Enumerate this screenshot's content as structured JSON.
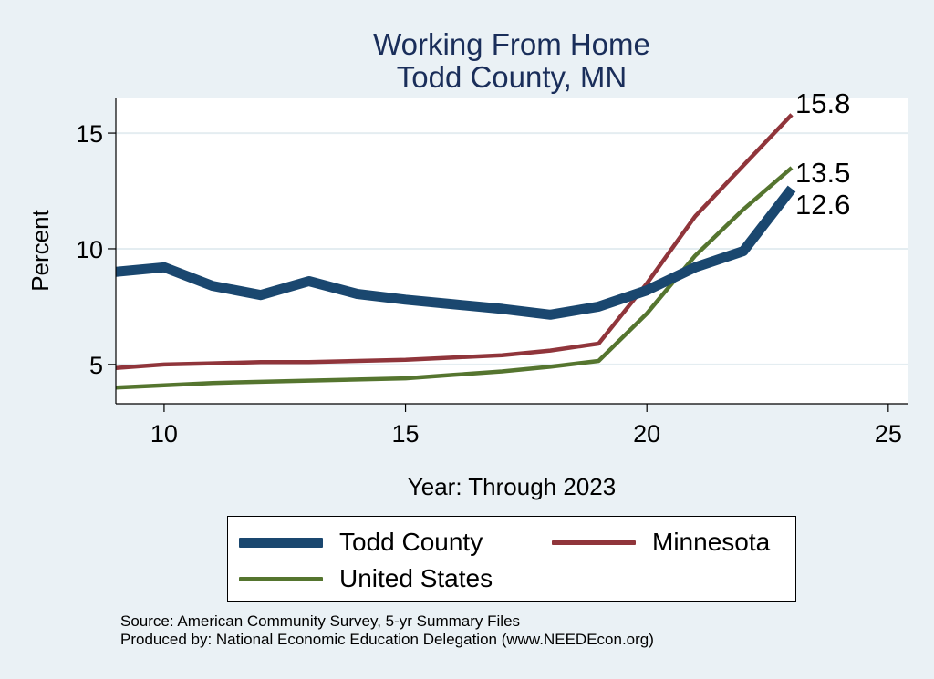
{
  "chart_data": {
    "type": "line",
    "title": "Working From Home",
    "subtitle": "Todd County, MN",
    "xlabel": "Year: Through 2023",
    "ylabel": "Percent",
    "xlim": [
      9,
      25.4
    ],
    "ylim": [
      3.3,
      16.5
    ],
    "x_ticks": [
      10,
      15,
      20,
      25
    ],
    "y_ticks": [
      5,
      10,
      15
    ],
    "grid": true,
    "legend_position": "bottom",
    "series": [
      {
        "name": "Todd County",
        "color": "#1a476f",
        "x": [
          9,
          10,
          11,
          12,
          13,
          14,
          15,
          16,
          17,
          18,
          19,
          20,
          21,
          22,
          23
        ],
        "values": [
          9.0,
          9.2,
          8.4,
          8.0,
          8.6,
          8.05,
          7.8,
          7.6,
          7.4,
          7.15,
          7.5,
          8.2,
          9.2,
          9.9,
          12.6
        ],
        "end_label": "12.6"
      },
      {
        "name": "Minnesota",
        "color": "#90353b",
        "x": [
          9,
          10,
          11,
          12,
          13,
          14,
          15,
          16,
          17,
          18,
          19,
          20,
          21,
          22,
          23
        ],
        "values": [
          4.85,
          5.0,
          5.05,
          5.1,
          5.1,
          5.15,
          5.2,
          5.3,
          5.4,
          5.6,
          5.9,
          8.5,
          11.4,
          13.6,
          15.8
        ],
        "end_label": "15.8"
      },
      {
        "name": "United States",
        "color": "#55752f",
        "x": [
          9,
          10,
          11,
          12,
          13,
          14,
          15,
          16,
          17,
          18,
          19,
          20,
          21,
          22,
          23
        ],
        "values": [
          4.0,
          4.1,
          4.2,
          4.25,
          4.3,
          4.35,
          4.4,
          4.55,
          4.7,
          4.9,
          5.15,
          7.2,
          9.7,
          11.7,
          13.5
        ],
        "end_label": "13.5"
      }
    ]
  },
  "source": {
    "line1": "Source: American Community Survey, 5-yr Summary Files",
    "line2": "Produced by: National Economic Education Delegation (www.NEEDEcon.org)"
  }
}
